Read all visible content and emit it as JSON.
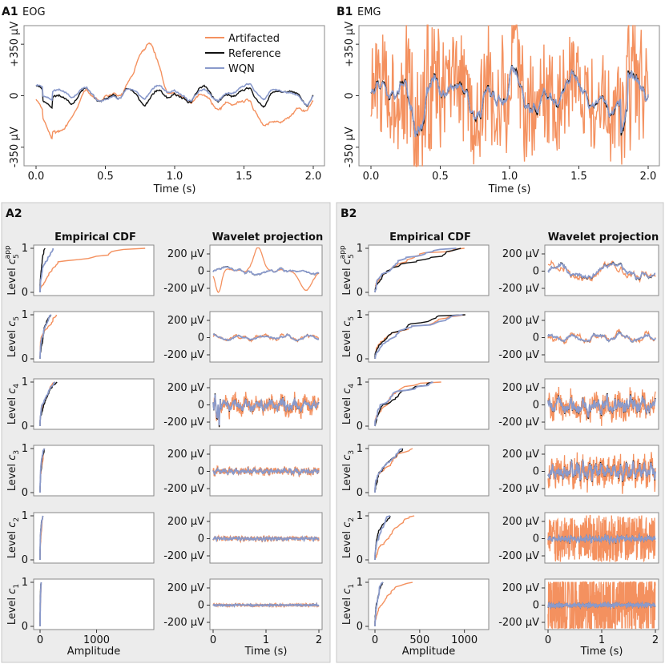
{
  "colors": {
    "artifacted": "#f4915f",
    "reference": "#111111",
    "wqn": "#8a9acb",
    "panel": "#ececec"
  },
  "chart_data": {
    "type": "line",
    "legend": [
      "Artifacted",
      "Reference",
      "WQN"
    ],
    "top": [
      {
        "label": "A1",
        "title": "EOG",
        "ylabel": "",
        "yticks": [
          "-350 μV",
          "0",
          "+350 μV"
        ],
        "xticks": [
          "0.0",
          "0.5",
          "1.0",
          "1.5",
          "2.0"
        ],
        "xlabel": "Time (s)",
        "xlim": [
          0,
          2
        ],
        "ylim": [
          -500,
          500
        ]
      },
      {
        "label": "B1",
        "title": "EMG",
        "ylabel": "",
        "yticks": [
          "-350 μV",
          "0",
          "+350 μV"
        ],
        "xticks": [
          "0.0",
          "0.5",
          "1.0",
          "1.5",
          "2.0"
        ],
        "xlabel": "Time (s)",
        "xlim": [
          0,
          2
        ],
        "ylim": [
          -500,
          500
        ]
      }
    ],
    "bottom": [
      {
        "label": "A2",
        "cdf_title": "Empirical CDF",
        "wav_title": "Wavelet projection",
        "cdf_xticks": [
          "0",
          "1000"
        ],
        "cdf_xlabel": "Amplitude",
        "wav_xticks": [
          "0",
          "1",
          "2"
        ],
        "wav_xlabel": "Time (s)",
        "wav_yticks": [
          "200 μV",
          "0",
          "-200 μV"
        ],
        "cdf_yticks": [
          "1",
          "0"
        ],
        "levels": [
          {
            "sym": "c",
            "sub": "5",
            "sup": "app",
            "max": {
              "art": 1860,
              "ref": 90,
              "wqn": 230
            }
          },
          {
            "sym": "c",
            "sub": "5",
            "sup": "",
            "max": {
              "art": 290,
              "ref": 190,
              "wqn": 200
            }
          },
          {
            "sym": "c",
            "sub": "4",
            "sup": "",
            "max": {
              "art": 260,
              "ref": 300,
              "wqn": 270
            }
          },
          {
            "sym": "c",
            "sub": "3",
            "sup": "",
            "max": {
              "art": 70,
              "ref": 80,
              "wqn": 80
            }
          },
          {
            "sym": "c",
            "sub": "2",
            "sup": "",
            "max": {
              "art": 50,
              "ref": 50,
              "wqn": 50
            }
          },
          {
            "sym": "c",
            "sub": "1",
            "sup": "",
            "max": {
              "art": 20,
              "ref": 20,
              "wqn": 20
            }
          }
        ]
      },
      {
        "label": "B2",
        "cdf_title": "Empirical CDF",
        "wav_title": "Wavelet projection",
        "cdf_xticks": [
          "0",
          "500",
          "1000"
        ],
        "cdf_xlabel": "Amplitude",
        "wav_xticks": [
          "0",
          "1",
          "2"
        ],
        "wav_xlabel": "Time (s)",
        "wav_yticks": [
          "200 μV",
          "0",
          "-200 μV"
        ],
        "cdf_yticks": [
          "1",
          "0"
        ],
        "levels": [
          {
            "sym": "c",
            "sub": "5",
            "sup": "app",
            "max": {
              "art": 1000,
              "ref": 960,
              "wqn": 910
            }
          },
          {
            "sym": "c",
            "sub": "5",
            "sup": "",
            "max": {
              "art": 1000,
              "ref": 1010,
              "wqn": 980
            }
          },
          {
            "sym": "c",
            "sub": "4",
            "sup": "",
            "max": {
              "art": 740,
              "ref": 640,
              "wqn": 650
            }
          },
          {
            "sym": "c",
            "sub": "3",
            "sup": "",
            "max": {
              "art": 420,
              "ref": 310,
              "wqn": 300
            }
          },
          {
            "sym": "c",
            "sub": "2",
            "sup": "",
            "max": {
              "art": 440,
              "ref": 170,
              "wqn": 170
            }
          },
          {
            "sym": "c",
            "sub": "1",
            "sup": "",
            "max": {
              "art": 420,
              "ref": 90,
              "wqn": 90
            }
          }
        ]
      }
    ]
  }
}
